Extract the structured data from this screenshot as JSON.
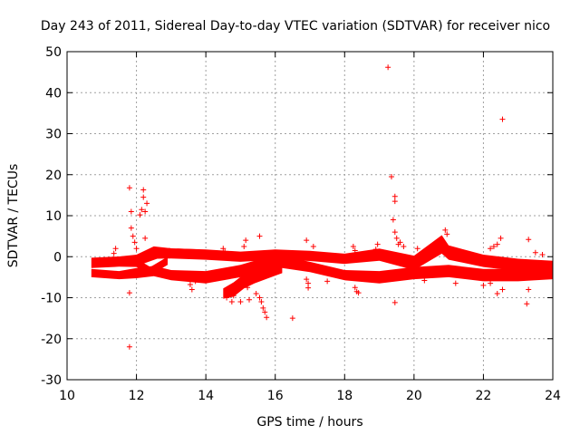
{
  "chart_data": {
    "type": "scatter",
    "title": "Day 243 of 2011, Sidereal Day-to-day VTEC variation (SDTVAR) for receiver nico",
    "xlabel": "GPS time / hours",
    "ylabel": "SDTVAR / TECUs",
    "xlim": [
      10,
      24
    ],
    "ylim": [
      -30,
      50
    ],
    "grid": true,
    "marker": "+",
    "color": "#ff0000",
    "x_ticks": [
      "10",
      "12",
      "14",
      "16",
      "18",
      "20",
      "22",
      "24"
    ],
    "y_ticks": [
      "50",
      "40",
      "30",
      "20",
      "10",
      "0",
      "-10",
      "-20",
      "-30"
    ],
    "bands": [
      {
        "name": "upper-band",
        "x": [
          10.7,
          11.5,
          12.0,
          12.5,
          13.0,
          14.0,
          15.0,
          16.0,
          17.0,
          18.0,
          19.0,
          20.0,
          20.8,
          21.0,
          22.0,
          23.0,
          24.0
        ],
        "y": [
          -1.5,
          -1.2,
          -1.0,
          1.0,
          0.8,
          0.5,
          0.0,
          0.5,
          0.2,
          -0.5,
          0.5,
          -1.5,
          3.0,
          1.0,
          -1.0,
          -2.0,
          -2.5
        ],
        "width": [
          2.5,
          2.5,
          3.0,
          3.0,
          2.5,
          2.5,
          2.5,
          2.5,
          2.5,
          2.5,
          3.0,
          3.5,
          4.5,
          3.5,
          3.0,
          3.0,
          3.0
        ]
      },
      {
        "name": "lower-band",
        "x": [
          10.7,
          11.5,
          12.0,
          12.5,
          13.0,
          14.0,
          15.0,
          16.0,
          17.0,
          18.0,
          19.0,
          20.0,
          21.0,
          22.0,
          23.0,
          24.0
        ],
        "y": [
          -4.0,
          -4.5,
          -4.0,
          -3.5,
          -4.5,
          -5.0,
          -3.5,
          -1.0,
          -2.5,
          -4.5,
          -5.0,
          -4.0,
          -3.5,
          -4.5,
          -4.5,
          -4.0
        ],
        "width": [
          2.0,
          2.0,
          2.5,
          2.5,
          2.5,
          3.0,
          3.0,
          3.0,
          2.5,
          2.5,
          3.0,
          3.0,
          3.0,
          3.0,
          3.0,
          3.0
        ]
      },
      {
        "name": "crossing-band",
        "x": [
          12.0,
          12.4,
          12.9
        ],
        "y": [
          -1.5,
          -3.5,
          -1.0
        ],
        "width": [
          2.0,
          2.0,
          2.0
        ]
      },
      {
        "name": "dip-band",
        "x": [
          14.5,
          14.8,
          15.1,
          15.4,
          15.8,
          16.2
        ],
        "y": [
          -9.0,
          -8.0,
          -6.0,
          -5.0,
          -4.0,
          -3.0
        ],
        "width": [
          2.5,
          3.5,
          3.5,
          3.0,
          2.5,
          2.0
        ]
      },
      {
        "name": "rise-band",
        "x": [
          12.1,
          12.6,
          13.2,
          13.8
        ],
        "y": [
          -1.0,
          0.5,
          1.0,
          0.8
        ],
        "width": [
          2.0,
          2.0,
          2.0,
          2.0
        ]
      }
    ],
    "points": [
      {
        "x": 19.25,
        "y": 46.2
      },
      {
        "x": 22.55,
        "y": 33.5
      },
      {
        "x": 11.8,
        "y": 16.8
      },
      {
        "x": 12.2,
        "y": 16.3
      },
      {
        "x": 12.2,
        "y": 14.5
      },
      {
        "x": 12.3,
        "y": 13.0
      },
      {
        "x": 11.85,
        "y": 11.0
      },
      {
        "x": 12.1,
        "y": 10.2
      },
      {
        "x": 12.15,
        "y": 11.5
      },
      {
        "x": 12.25,
        "y": 11.0
      },
      {
        "x": 11.85,
        "y": 7.0
      },
      {
        "x": 11.9,
        "y": 5.0
      },
      {
        "x": 12.25,
        "y": 4.5
      },
      {
        "x": 11.95,
        "y": 3.5
      },
      {
        "x": 12.0,
        "y": 2.0
      },
      {
        "x": 11.8,
        "y": -8.8
      },
      {
        "x": 11.8,
        "y": -22.0
      },
      {
        "x": 19.35,
        "y": 19.5
      },
      {
        "x": 19.45,
        "y": 14.7
      },
      {
        "x": 19.45,
        "y": 13.5
      },
      {
        "x": 19.4,
        "y": 9.0
      },
      {
        "x": 19.45,
        "y": 6.0
      },
      {
        "x": 19.5,
        "y": 4.5
      },
      {
        "x": 19.55,
        "y": 3.0
      },
      {
        "x": 19.45,
        "y": -11.2
      },
      {
        "x": 18.9,
        "y": 1.8
      },
      {
        "x": 18.95,
        "y": 3.0
      },
      {
        "x": 18.25,
        "y": 2.5
      },
      {
        "x": 18.3,
        "y": 1.5
      },
      {
        "x": 18.3,
        "y": -7.5
      },
      {
        "x": 18.35,
        "y": -8.5
      },
      {
        "x": 15.55,
        "y": 5.0
      },
      {
        "x": 15.15,
        "y": 4.0
      },
      {
        "x": 15.1,
        "y": 2.5
      },
      {
        "x": 16.5,
        "y": -15.0
      },
      {
        "x": 15.75,
        "y": -14.8
      },
      {
        "x": 15.7,
        "y": -13.5
      },
      {
        "x": 15.65,
        "y": -12.5
      },
      {
        "x": 15.6,
        "y": -11.0
      },
      {
        "x": 15.55,
        "y": -10.0
      },
      {
        "x": 16.9,
        "y": 4.0
      },
      {
        "x": 16.95,
        "y": -7.6
      },
      {
        "x": 16.95,
        "y": -6.5
      },
      {
        "x": 16.9,
        "y": -5.5
      },
      {
        "x": 13.6,
        "y": -8.0
      },
      {
        "x": 13.55,
        "y": -6.8
      },
      {
        "x": 13.7,
        "y": -6.0
      },
      {
        "x": 13.8,
        "y": -5.0
      },
      {
        "x": 14.5,
        "y": 2.0
      },
      {
        "x": 14.55,
        "y": 1.2
      },
      {
        "x": 11.4,
        "y": 2.0
      },
      {
        "x": 11.35,
        "y": 0.8
      },
      {
        "x": 22.5,
        "y": 4.5
      },
      {
        "x": 22.4,
        "y": 3.0
      },
      {
        "x": 22.3,
        "y": 2.5
      },
      {
        "x": 22.2,
        "y": 2.0
      },
      {
        "x": 22.4,
        "y": -9.0
      },
      {
        "x": 22.55,
        "y": -8.0
      },
      {
        "x": 22.2,
        "y": -6.5
      },
      {
        "x": 23.3,
        "y": 4.2
      },
      {
        "x": 23.25,
        "y": -11.5
      },
      {
        "x": 23.3,
        "y": -8.0
      },
      {
        "x": 23.5,
        "y": 1.0
      },
      {
        "x": 23.7,
        "y": 0.5
      },
      {
        "x": 20.9,
        "y": 6.5
      },
      {
        "x": 20.95,
        "y": 5.5
      },
      {
        "x": 19.6,
        "y": 3.5
      },
      {
        "x": 19.7,
        "y": 2.5
      },
      {
        "x": 20.1,
        "y": 2.0
      },
      {
        "x": 20.3,
        "y": -5.8
      },
      {
        "x": 17.5,
        "y": -6.0
      },
      {
        "x": 17.1,
        "y": 2.5
      },
      {
        "x": 12.95,
        "y": 1.5
      },
      {
        "x": 15.2,
        "y": -7.5
      },
      {
        "x": 15.25,
        "y": -10.5
      },
      {
        "x": 15.0,
        "y": -11.0
      },
      {
        "x": 14.75,
        "y": -11.0
      },
      {
        "x": 14.6,
        "y": -10.0
      },
      {
        "x": 14.8,
        "y": -9.5
      },
      {
        "x": 15.45,
        "y": -9.0
      },
      {
        "x": 18.4,
        "y": -8.8
      },
      {
        "x": 22.0,
        "y": -7.0
      },
      {
        "x": 21.2,
        "y": -6.5
      }
    ]
  }
}
